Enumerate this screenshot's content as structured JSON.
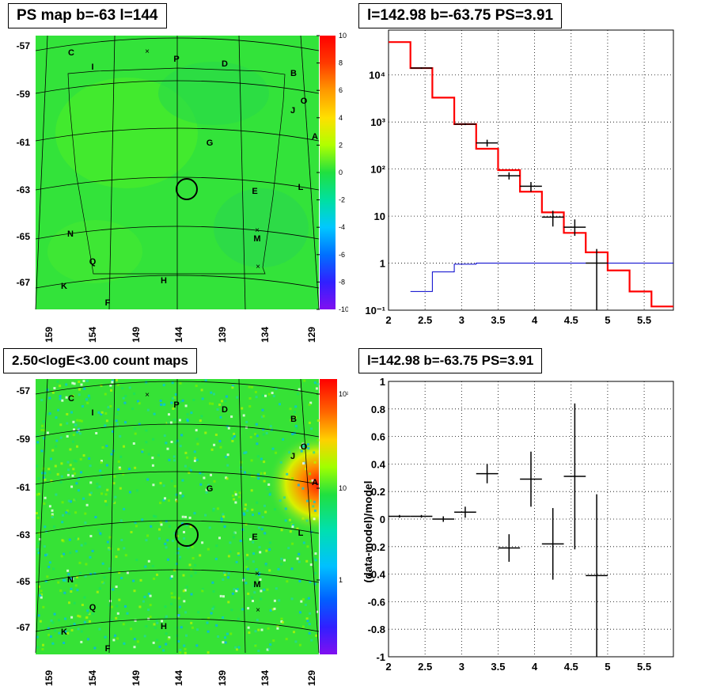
{
  "panels": {
    "ps_map": {
      "title": "PS map b=-63 l=144",
      "y_ticks": [
        "-57",
        "-59",
        "-61",
        "-63",
        "-65",
        "-67"
      ],
      "x_ticks": [
        "159",
        "154",
        "149",
        "144",
        "139",
        "134",
        "129"
      ],
      "colorbar_ticks": [
        "10",
        "8",
        "6",
        "4",
        "2",
        "0",
        "-2",
        "-4",
        "-6",
        "-8",
        "-10"
      ],
      "labels": [
        {
          "t": "C"
        },
        {
          "t": "I"
        },
        {
          "t": "P"
        },
        {
          "t": "D"
        },
        {
          "t": "B"
        },
        {
          "t": "O"
        },
        {
          "t": "J"
        },
        {
          "t": "A"
        },
        {
          "t": "G"
        },
        {
          "t": "E"
        },
        {
          "t": "L"
        },
        {
          "t": "N"
        },
        {
          "t": "M"
        },
        {
          "t": "Q"
        },
        {
          "t": "K"
        },
        {
          "t": "H"
        },
        {
          "t": "F"
        }
      ]
    },
    "count_map": {
      "title": "2.50<logE<3.00 count maps",
      "y_ticks": [
        "-57",
        "-59",
        "-61",
        "-63",
        "-65",
        "-67"
      ],
      "x_ticks": [
        "159",
        "154",
        "149",
        "144",
        "139",
        "134",
        "129"
      ],
      "colorbar_ticks": [
        "10²",
        "10",
        "1"
      ]
    },
    "spectrum": {
      "title": "l=142.98 b=-63.75 PS=3.91"
    },
    "residual": {
      "title": "l=142.98 b=-63.75 PS=3.91",
      "ylabel": "(data-model)/model"
    }
  },
  "chart_data": [
    {
      "type": "line",
      "title": "l=142.98 b=-63.75 PS=3.91",
      "y_scale": "log",
      "xlim": [
        2,
        5.9
      ],
      "ylim": [
        0.1,
        90000
      ],
      "x_ticks": [
        "2",
        "2.5",
        "3",
        "3.5",
        "4",
        "4.5",
        "5",
        "5.5"
      ],
      "y_ticks": [
        "10⁻¹",
        "1",
        "10",
        "10²",
        "10³",
        "10⁴"
      ],
      "grid": true,
      "series": [
        {
          "color": "#ff0000",
          "style": "step",
          "edges": [
            2.0,
            2.3,
            2.6,
            2.9,
            3.2,
            3.5,
            3.8,
            4.1,
            4.4,
            4.7,
            5.0,
            5.3,
            5.6,
            5.9
          ],
          "values": [
            50000,
            14000,
            3300,
            900,
            270,
            95,
            33,
            12,
            4.4,
            1.7,
            0.7,
            0.25,
            0.12
          ]
        },
        {
          "color": "#0000cc",
          "style": "step",
          "edges": [
            2.3,
            2.6,
            2.9,
            3.2,
            3.5,
            3.8,
            4.1,
            4.4,
            4.7,
            5.0,
            5.3,
            5.6,
            5.9
          ],
          "values": [
            0.25,
            0.65,
            0.95,
            1.0,
            1.0,
            1.0,
            1.0,
            1.0,
            1.0,
            1.0,
            1.0,
            1.0
          ]
        },
        {
          "color": "#000000",
          "style": "errorbars",
          "points": [
            {
              "x": 2.45,
              "y": 14000,
              "xerr": 0.15,
              "ylo": 13500,
              "yhi": 14500
            },
            {
              "x": 3.05,
              "y": 900,
              "xerr": 0.15,
              "ylo": 860,
              "yhi": 940
            },
            {
              "x": 3.35,
              "y": 360,
              "xerr": 0.15,
              "ylo": 300,
              "yhi": 420
            },
            {
              "x": 3.65,
              "y": 72,
              "xerr": 0.15,
              "ylo": 60,
              "yhi": 85
            },
            {
              "x": 3.95,
              "y": 43,
              "xerr": 0.15,
              "ylo": 33,
              "yhi": 53
            },
            {
              "x": 4.25,
              "y": 9.5,
              "xerr": 0.15,
              "ylo": 6,
              "yhi": 13
            },
            {
              "x": 4.55,
              "y": 5.8,
              "xerr": 0.15,
              "ylo": 3.8,
              "yhi": 8.5
            },
            {
              "x": 4.85,
              "y": 1.0,
              "xerr": 0.15,
              "ylo": 0.1,
              "yhi": 2.0
            }
          ]
        }
      ]
    },
    {
      "type": "scatter",
      "title": "l=142.98 b=-63.75 PS=3.91",
      "ylabel": "(data-model)/model",
      "xlim": [
        2,
        5.9
      ],
      "ylim": [
        -1,
        1
      ],
      "x_ticks": [
        "2",
        "2.5",
        "3",
        "3.5",
        "4",
        "4.5",
        "5",
        "5.5"
      ],
      "y_ticks": [
        "1",
        "0.8",
        "0.6",
        "0.4",
        "0.2",
        "0",
        "-0.2",
        "-0.4",
        "-0.6",
        "-0.8",
        "-1"
      ],
      "grid": true,
      "series": [
        {
          "color": "#000000",
          "style": "errorbars",
          "points": [
            {
              "x": 2.15,
              "y": 0.02,
              "xerr": 0.15,
              "yerr": 0.01
            },
            {
              "x": 2.45,
              "y": 0.02,
              "xerr": 0.15,
              "yerr": 0.01
            },
            {
              "x": 2.75,
              "y": 0.0,
              "xerr": 0.15,
              "yerr": 0.02
            },
            {
              "x": 3.05,
              "y": 0.05,
              "xerr": 0.15,
              "yerr": 0.04
            },
            {
              "x": 3.35,
              "y": 0.33,
              "xerr": 0.15,
              "yerr": 0.07
            },
            {
              "x": 3.65,
              "y": -0.21,
              "xerr": 0.15,
              "yerr": 0.1
            },
            {
              "x": 3.95,
              "y": 0.29,
              "xerr": 0.15,
              "yerr": 0.2
            },
            {
              "x": 4.25,
              "y": -0.18,
              "xerr": 0.15,
              "yerr": 0.26
            },
            {
              "x": 4.55,
              "y": 0.31,
              "xerr": 0.15,
              "yerr": 0.53
            },
            {
              "x": 4.85,
              "y": -0.41,
              "xerr": 0.15,
              "yerr": 0.59
            }
          ]
        }
      ]
    }
  ]
}
